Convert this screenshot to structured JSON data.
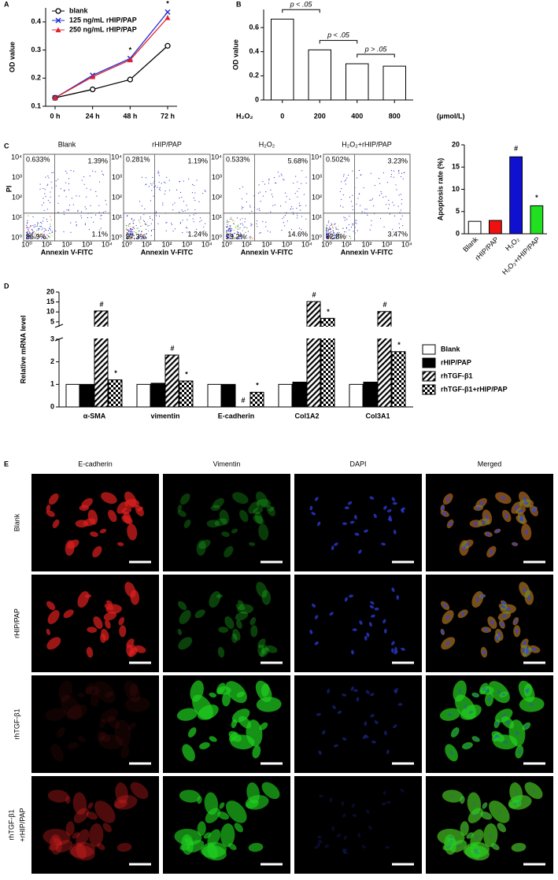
{
  "chart_data": [
    {
      "type": "line",
      "panel_label": "A",
      "y_label": "OD value",
      "categories": [
        "0 h",
        "24 h",
        "48 h",
        "72 h"
      ],
      "ylim": [
        0.1,
        0.45
      ],
      "yticks": [
        0.1,
        0.2,
        0.3,
        0.4
      ],
      "series": [
        {
          "name": "blank",
          "color": "#000000",
          "marker": "circle",
          "values": [
            0.13,
            0.16,
            0.195,
            0.315
          ],
          "markers": [
            null,
            null,
            null,
            null
          ]
        },
        {
          "name": "125 ng/mL rHIP/PAP",
          "color": "#1f2fd0",
          "marker": "x",
          "values": [
            0.13,
            0.21,
            0.27,
            0.435
          ],
          "markers": [
            null,
            null,
            "*",
            "*"
          ]
        },
        {
          "name": "250 ng/mL rHIP/PAP",
          "color": "#e3202c",
          "marker": "triangle",
          "values": [
            0.13,
            0.205,
            0.265,
            0.415
          ],
          "markers": [
            null,
            null,
            null,
            null
          ]
        }
      ]
    },
    {
      "type": "bar",
      "panel_label": "B",
      "y_label": "OD value",
      "x_label": "H₂O₂",
      "unit": "(μmol/L)",
      "categories": [
        "0",
        "200",
        "400",
        "800"
      ],
      "values": [
        0.67,
        0.415,
        0.3,
        0.28
      ],
      "color": "#ffffff",
      "ylim": [
        0,
        0.75
      ],
      "yticks": [
        0,
        0.2,
        0.4,
        0.6
      ],
      "comparisons": [
        {
          "text": "p < .05",
          "from": "0",
          "to": "200"
        },
        {
          "text": "p < .05",
          "from": "200",
          "to": "400"
        },
        {
          "text": "p > .05",
          "from": "400",
          "to": "800"
        }
      ]
    },
    {
      "type": "bar",
      "y_label": "Apoptosis rate (%)",
      "categories": [
        "Blank",
        "rHIP/PAP",
        "H₂O₂",
        "H₂O₂+rHIP/PAP"
      ],
      "values": [
        2.8,
        3.0,
        17.3,
        6.3
      ],
      "colors": [
        "#ffffff",
        "#f01010",
        "#1010d0",
        "#20e020"
      ],
      "markers": [
        null,
        null,
        "#",
        "*"
      ],
      "ylim": [
        0,
        20
      ],
      "yticks": [
        0,
        5,
        10,
        15,
        20
      ]
    },
    {
      "type": "grouped-bar",
      "panel_label": "D",
      "y_label": "Relative mRNA level",
      "categories": [
        "α-SMA",
        "vimentin",
        "E-cadherin",
        "Col1A2",
        "Col3A1"
      ],
      "ylim": [
        0,
        20
      ],
      "axis_break": 3,
      "yticks": [
        0,
        1,
        2,
        3,
        5,
        10,
        15,
        20
      ],
      "series": [
        {
          "name": "Blank",
          "color": "#ffffff",
          "pattern": "none",
          "values": [
            1,
            1,
            1,
            1,
            1
          ],
          "markers": [
            null,
            null,
            null,
            null,
            null
          ]
        },
        {
          "name": "rHIP/PAP",
          "color": "#000000",
          "pattern": "none",
          "values": [
            1,
            1.05,
            1,
            1.1,
            1.1
          ],
          "markers": [
            null,
            null,
            null,
            null,
            null
          ]
        },
        {
          "name": "rhTGF-β1",
          "color": "#000000",
          "pattern": "diagonal",
          "values": [
            10.5,
            2.3,
            0,
            15.2,
            10.2
          ],
          "markers": [
            "#",
            "#",
            "#",
            "#",
            "#"
          ]
        },
        {
          "name": "rhTGF-β1+rHIP/PAP",
          "color": "#000000",
          "pattern": "checker",
          "values": [
            1.2,
            1.15,
            0.65,
            6.8,
            2.45
          ],
          "markers": [
            "*",
            "*",
            "*",
            "*",
            "*"
          ]
        }
      ]
    }
  ],
  "flow_cytometry": {
    "panel_label": "C",
    "y_label": "PI",
    "x_label": "Annexin V-FITC",
    "axis_ticks": [
      "10⁰",
      "10¹",
      "10²",
      "10³",
      "10⁴"
    ],
    "plots": [
      {
        "title": "Blank",
        "upper_left": "0.633%",
        "upper_right": "1.39%",
        "lower_left": "96.9%",
        "lower_right": "1.1%"
      },
      {
        "title": "rHIP/PAP",
        "upper_left": "0.281%",
        "upper_right": "1.19%",
        "lower_left": "97.3%",
        "lower_right": "1.24%"
      },
      {
        "title": "H₂O₂",
        "upper_left": "0.533%",
        "upper_right": "5.68%",
        "lower_left": "79.2%",
        "lower_right": "14.6%"
      },
      {
        "title": "H₂O₂+rHIP/PAP",
        "upper_left": "0.502%",
        "upper_right": "3.23%",
        "lower_left": "92.8%",
        "lower_right": "3.47%"
      }
    ]
  },
  "micrographs": {
    "panel_label": "E",
    "columns": [
      {
        "title": "E-cadherin",
        "color": "#e02020"
      },
      {
        "title": "Vimentin",
        "color": "#20d020"
      },
      {
        "title": "DAPI",
        "color": "#2020e0"
      },
      {
        "title": "Merged",
        "color": "#000000"
      }
    ],
    "rows": [
      [
        "Blank"
      ],
      [
        "rHIP/PAP"
      ],
      [
        "rhTGF-β1"
      ],
      [
        "rhTGF-β1",
        "+rHIP/PAP"
      ]
    ]
  }
}
